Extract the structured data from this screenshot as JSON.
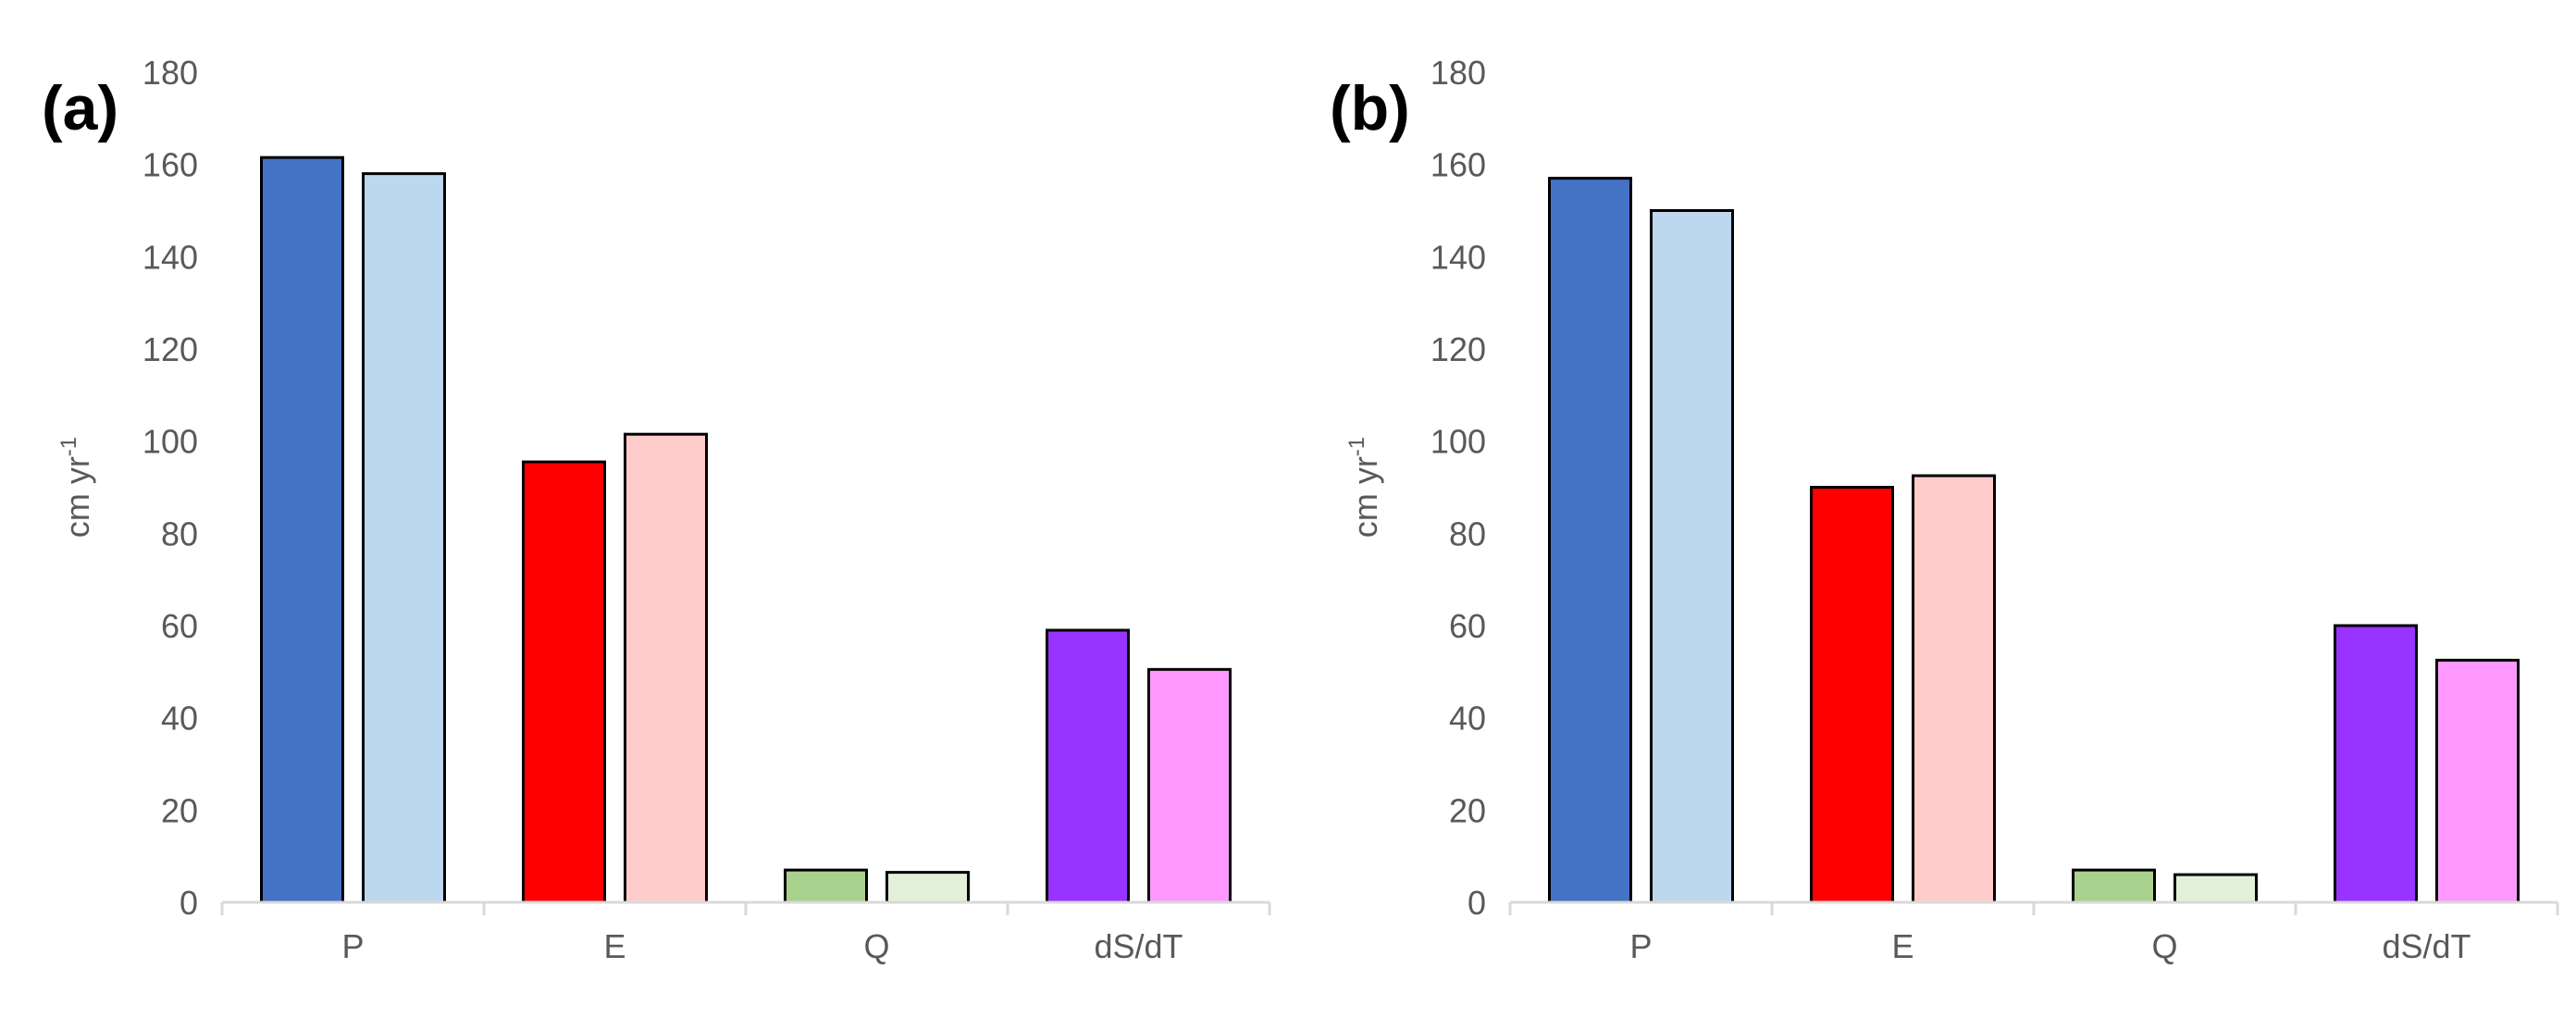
{
  "chart_data": [
    {
      "type": "bar",
      "panel_label": "(a)",
      "categories": [
        "P",
        "E",
        "Q",
        "dS/dT"
      ],
      "ylabel": "cm yr",
      "ylabel_sup": "-1",
      "ylim": [
        0,
        180
      ],
      "yticks": [
        0,
        20,
        40,
        60,
        80,
        100,
        120,
        140,
        160,
        180
      ],
      "grid": false,
      "series": [
        {
          "values": [
            161.5,
            95.5,
            7,
            59
          ],
          "colors": [
            "#4472C4",
            "#FF0000",
            "#A9D18E",
            "#9933FF"
          ]
        },
        {
          "values": [
            158,
            101.5,
            6.5,
            50.5
          ],
          "colors": [
            "#BDD7EE",
            "#FFCCCC",
            "#E2F0D9",
            "#FF99FF"
          ]
        }
      ]
    },
    {
      "type": "bar",
      "panel_label": "(b)",
      "categories": [
        "P",
        "E",
        "Q",
        "dS/dT"
      ],
      "ylabel": "cm yr",
      "ylabel_sup": "-1",
      "ylim": [
        0,
        180
      ],
      "yticks": [
        0,
        20,
        40,
        60,
        80,
        100,
        120,
        140,
        160,
        180
      ],
      "grid": false,
      "series": [
        {
          "values": [
            157,
            90,
            7,
            60
          ],
          "colors": [
            "#4472C4",
            "#FF0000",
            "#A9D18E",
            "#9933FF"
          ]
        },
        {
          "values": [
            150,
            92.5,
            6,
            52.5
          ],
          "colors": [
            "#BDD7EE",
            "#FFCCCC",
            "#E2F0D9",
            "#FF99FF"
          ]
        }
      ]
    }
  ]
}
